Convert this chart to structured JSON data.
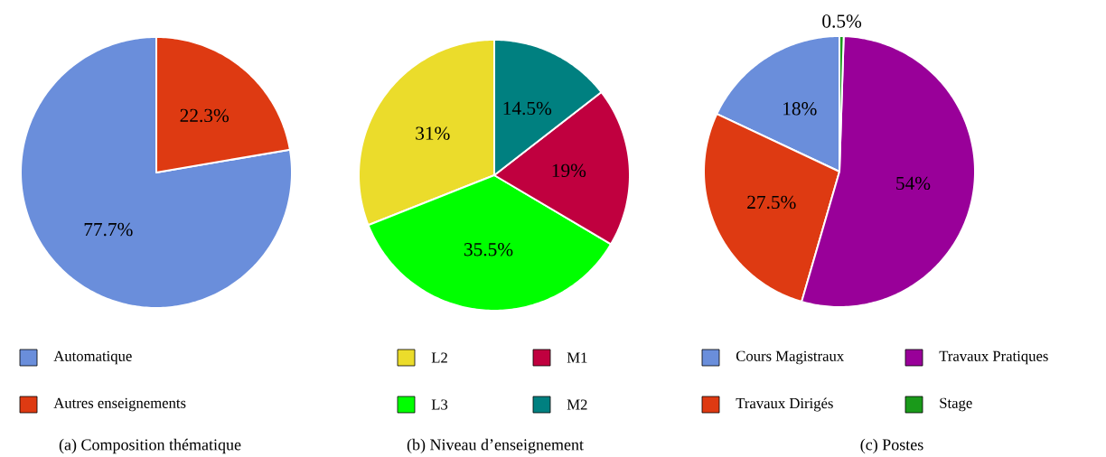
{
  "chart_data": [
    {
      "type": "pie",
      "title": "(a) Composition thématique",
      "categories": [
        "Automatique",
        "Autres enseignements"
      ],
      "values": [
        77.7,
        22.3
      ],
      "colors": [
        "#6a8edb",
        "#de3a12"
      ],
      "value_labels": [
        "77.7%",
        "22.3%"
      ],
      "legend": "bottom"
    },
    {
      "type": "pie",
      "title": "(b) Niveau d’enseignement",
      "categories": [
        "L2",
        "L3",
        "M1",
        "M2"
      ],
      "values": [
        31,
        35.5,
        19,
        14.5
      ],
      "colors": [
        "#ebdc2b",
        "#00ff00",
        "#c0003f",
        "#008080"
      ],
      "value_labels": [
        "31%",
        "35.5%",
        "19%",
        "14.5%"
      ],
      "legend": "bottom"
    },
    {
      "type": "pie",
      "title": "(c) Postes",
      "categories": [
        "Cours Magistraux",
        "Travaux Dirigés",
        "Travaux Pratiques",
        "Stage"
      ],
      "values": [
        18,
        27.5,
        54,
        0.5
      ],
      "colors": [
        "#6a8edb",
        "#de3a12",
        "#990099",
        "#1a9a1a"
      ],
      "value_labels": [
        "18%",
        "27.5%",
        "54%",
        "0.5%"
      ],
      "legend": "bottom"
    }
  ]
}
